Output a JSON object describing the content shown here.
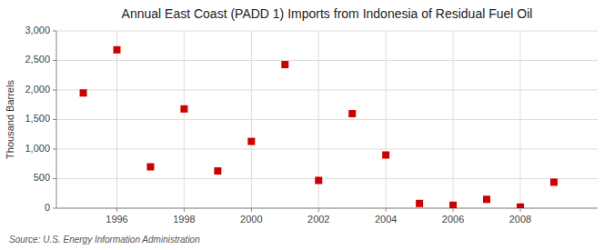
{
  "chart_data": {
    "type": "scatter",
    "title": "Annual East Coast (PADD 1) Imports from Indonesia of Residual Fuel Oil",
    "ylabel": "Thousand Barrels",
    "source": "Source: U.S. Energy Information Administration",
    "x": [
      1995,
      1996,
      1997,
      1998,
      1999,
      2000,
      2001,
      2002,
      2003,
      2004,
      2005,
      2006,
      2007,
      2008,
      2009
    ],
    "y": [
      1950,
      2680,
      700,
      1680,
      630,
      1130,
      2430,
      470,
      1600,
      900,
      80,
      50,
      150,
      20,
      440
    ],
    "color": "#cc0000",
    "marker": "square",
    "xlim": [
      1994.2,
      2010.3
    ],
    "xticks": [
      1996,
      1998,
      2000,
      2002,
      2004,
      2006,
      2008
    ],
    "ylim": [
      0,
      3000
    ],
    "yticks": [
      0,
      500,
      {
        "value": 1000,
        "label": "1,000"
      },
      {
        "value": 1500,
        "label": "1,500"
      },
      {
        "value": 2000,
        "label": "2,000"
      },
      {
        "value": 2500,
        "label": "2,500"
      },
      {
        "value": 3000,
        "label": "3,000"
      }
    ],
    "grid": true
  }
}
